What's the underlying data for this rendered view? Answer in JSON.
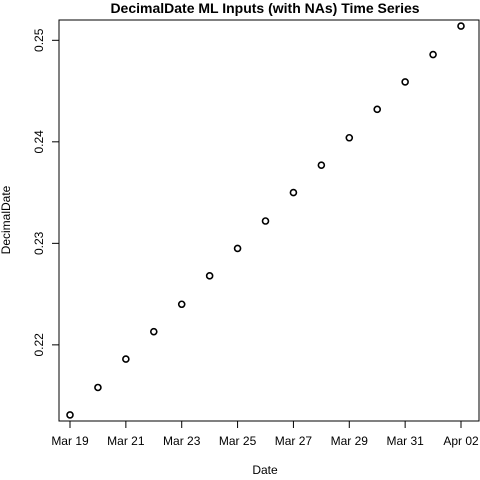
{
  "chart_data": {
    "type": "scatter",
    "title": "DecimalDate ML Inputs (with NAs) Time Series",
    "xlabel": "Date",
    "ylabel": "DecimalDate",
    "x": [
      "Mar 19",
      "Mar 20",
      "Mar 21",
      "Mar 22",
      "Mar 23",
      "Mar 24",
      "Mar 25",
      "Mar 26",
      "Mar 27",
      "Mar 28",
      "Mar 29",
      "Mar 30",
      "Mar 31",
      "Apr 01",
      "Apr 02"
    ],
    "y": [
      0.2131,
      0.2158,
      0.2186,
      0.2213,
      0.224,
      0.2268,
      0.2295,
      0.2322,
      0.235,
      0.2377,
      0.2404,
      0.2432,
      0.2459,
      0.2486,
      0.2514
    ],
    "x_ticks": [
      "Mar 19",
      "Mar 21",
      "Mar 23",
      "Mar 25",
      "Mar 27",
      "Mar 29",
      "Mar 31",
      "Apr 02"
    ],
    "y_ticks": [
      0.22,
      0.23,
      0.24,
      0.25
    ],
    "y_tick_labels": [
      "0.22",
      "0.23",
      "0.24",
      "0.25"
    ],
    "ylim": [
      0.2125,
      0.252
    ],
    "grid": false,
    "legend": "none",
    "marker": "open-circle",
    "point_color": "#000000"
  }
}
